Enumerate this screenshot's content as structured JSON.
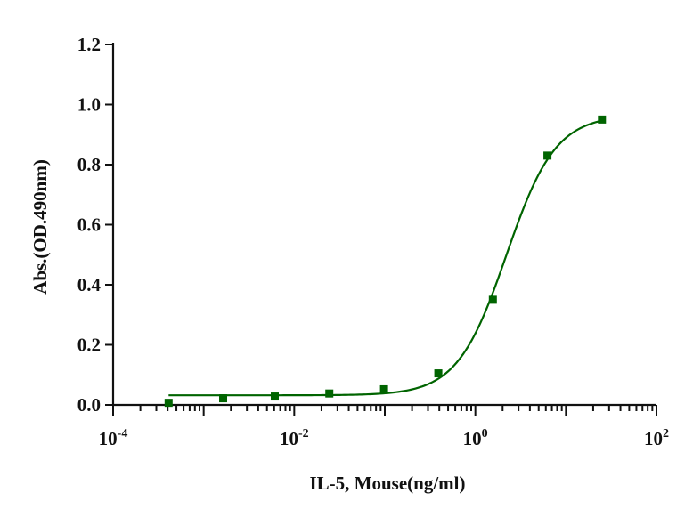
{
  "chart_data": {
    "type": "scatter",
    "title": "",
    "xlabel": "IL-5, Mouse(ng/ml)",
    "ylabel": "Abs.(OD.490nm)",
    "xscale": "log",
    "xlim": [
      0.0001,
      100
    ],
    "ylim": [
      0,
      1.2
    ],
    "x_tick_labels": [
      {
        "base": "10",
        "exp": "-4"
      },
      {
        "base": "10",
        "exp": "-2"
      },
      {
        "base": "10",
        "exp": "0"
      },
      {
        "base": "10",
        "exp": "2"
      }
    ],
    "y_tick_labels": [
      "0.0",
      "0.2",
      "0.4",
      "0.6",
      "0.8",
      "1.0",
      "1.2"
    ],
    "series": [
      {
        "marker": "square",
        "fit": "4PL",
        "x": [
          0.00041,
          0.00164,
          0.0061,
          0.0244,
          0.098,
          0.39,
          1.56,
          6.25,
          25
        ],
        "y": [
          0.007,
          0.022,
          0.028,
          0.038,
          0.052,
          0.105,
          0.35,
          0.83,
          0.95
        ],
        "fit_curve": {
          "bottom": 0.032,
          "top": 0.965,
          "ec50": 2.2,
          "hill": 1.6
        }
      }
    ],
    "colors": {
      "series": "#006400",
      "axis": "#111111"
    },
    "grid": false,
    "legend": "none"
  }
}
